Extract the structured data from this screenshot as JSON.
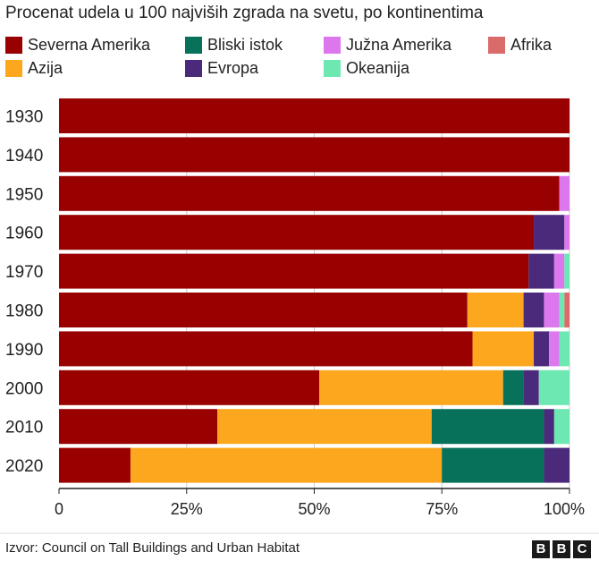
{
  "chart_data": {
    "type": "bar",
    "orientation": "horizontal",
    "stacked": true,
    "title": "Procenat udela u 100 najviših zgrada na svetu, po kontinentima",
    "categories": [
      "1930",
      "1940",
      "1950",
      "1960",
      "1970",
      "1980",
      "1990",
      "2000",
      "2010",
      "2020"
    ],
    "series": [
      {
        "name": "Severna Amerika",
        "color": "#990000",
        "values": [
          100,
          100,
          98,
          93,
          92,
          80,
          81,
          51,
          31,
          14
        ]
      },
      {
        "name": "Azija",
        "color": "#fca71e",
        "values": [
          0,
          0,
          0,
          0,
          0,
          11,
          12,
          36,
          42,
          61
        ]
      },
      {
        "name": "Bliski istok",
        "color": "#077159",
        "values": [
          0,
          0,
          0,
          0,
          0,
          0,
          0,
          4,
          22,
          20
        ]
      },
      {
        "name": "Evropa",
        "color": "#4b2a7b",
        "values": [
          0,
          0,
          0,
          6,
          5,
          4,
          3,
          3,
          2,
          5
        ]
      },
      {
        "name": "Južna Amerika",
        "color": "#dd77ee",
        "values": [
          0,
          0,
          2,
          1,
          2,
          3,
          2,
          0,
          0,
          0
        ]
      },
      {
        "name": "Okeanija",
        "color": "#6ee8b3",
        "values": [
          0,
          0,
          0,
          0,
          1,
          1,
          2,
          6,
          3,
          0
        ]
      },
      {
        "name": "Afrika",
        "color": "#d96b6b",
        "values": [
          0,
          0,
          0,
          0,
          0,
          1,
          0,
          0,
          0,
          0
        ]
      }
    ],
    "xlim": [
      0,
      100
    ],
    "x_ticks": [
      "0",
      "25%",
      "50%",
      "75%",
      "100%"
    ],
    "x_tick_values": [
      0,
      25,
      50,
      75,
      100
    ],
    "grid": true,
    "legend_position": "top"
  },
  "legend": [
    {
      "label": "Severna Amerika",
      "color": "#990000"
    },
    {
      "label": "Bliski istok",
      "color": "#077159"
    },
    {
      "label": "Južna Amerika",
      "color": "#dd77ee"
    },
    {
      "label": "Afrika",
      "color": "#d96b6b"
    },
    {
      "label": "Azija",
      "color": "#fca71e"
    },
    {
      "label": "Evropa",
      "color": "#4b2a7b"
    },
    {
      "label": "Okeanija",
      "color": "#6ee8b3"
    }
  ],
  "source": "Izvor: Council on Tall Buildings and Urban Habitat",
  "brand": {
    "letters": [
      "B",
      "B",
      "C"
    ]
  }
}
